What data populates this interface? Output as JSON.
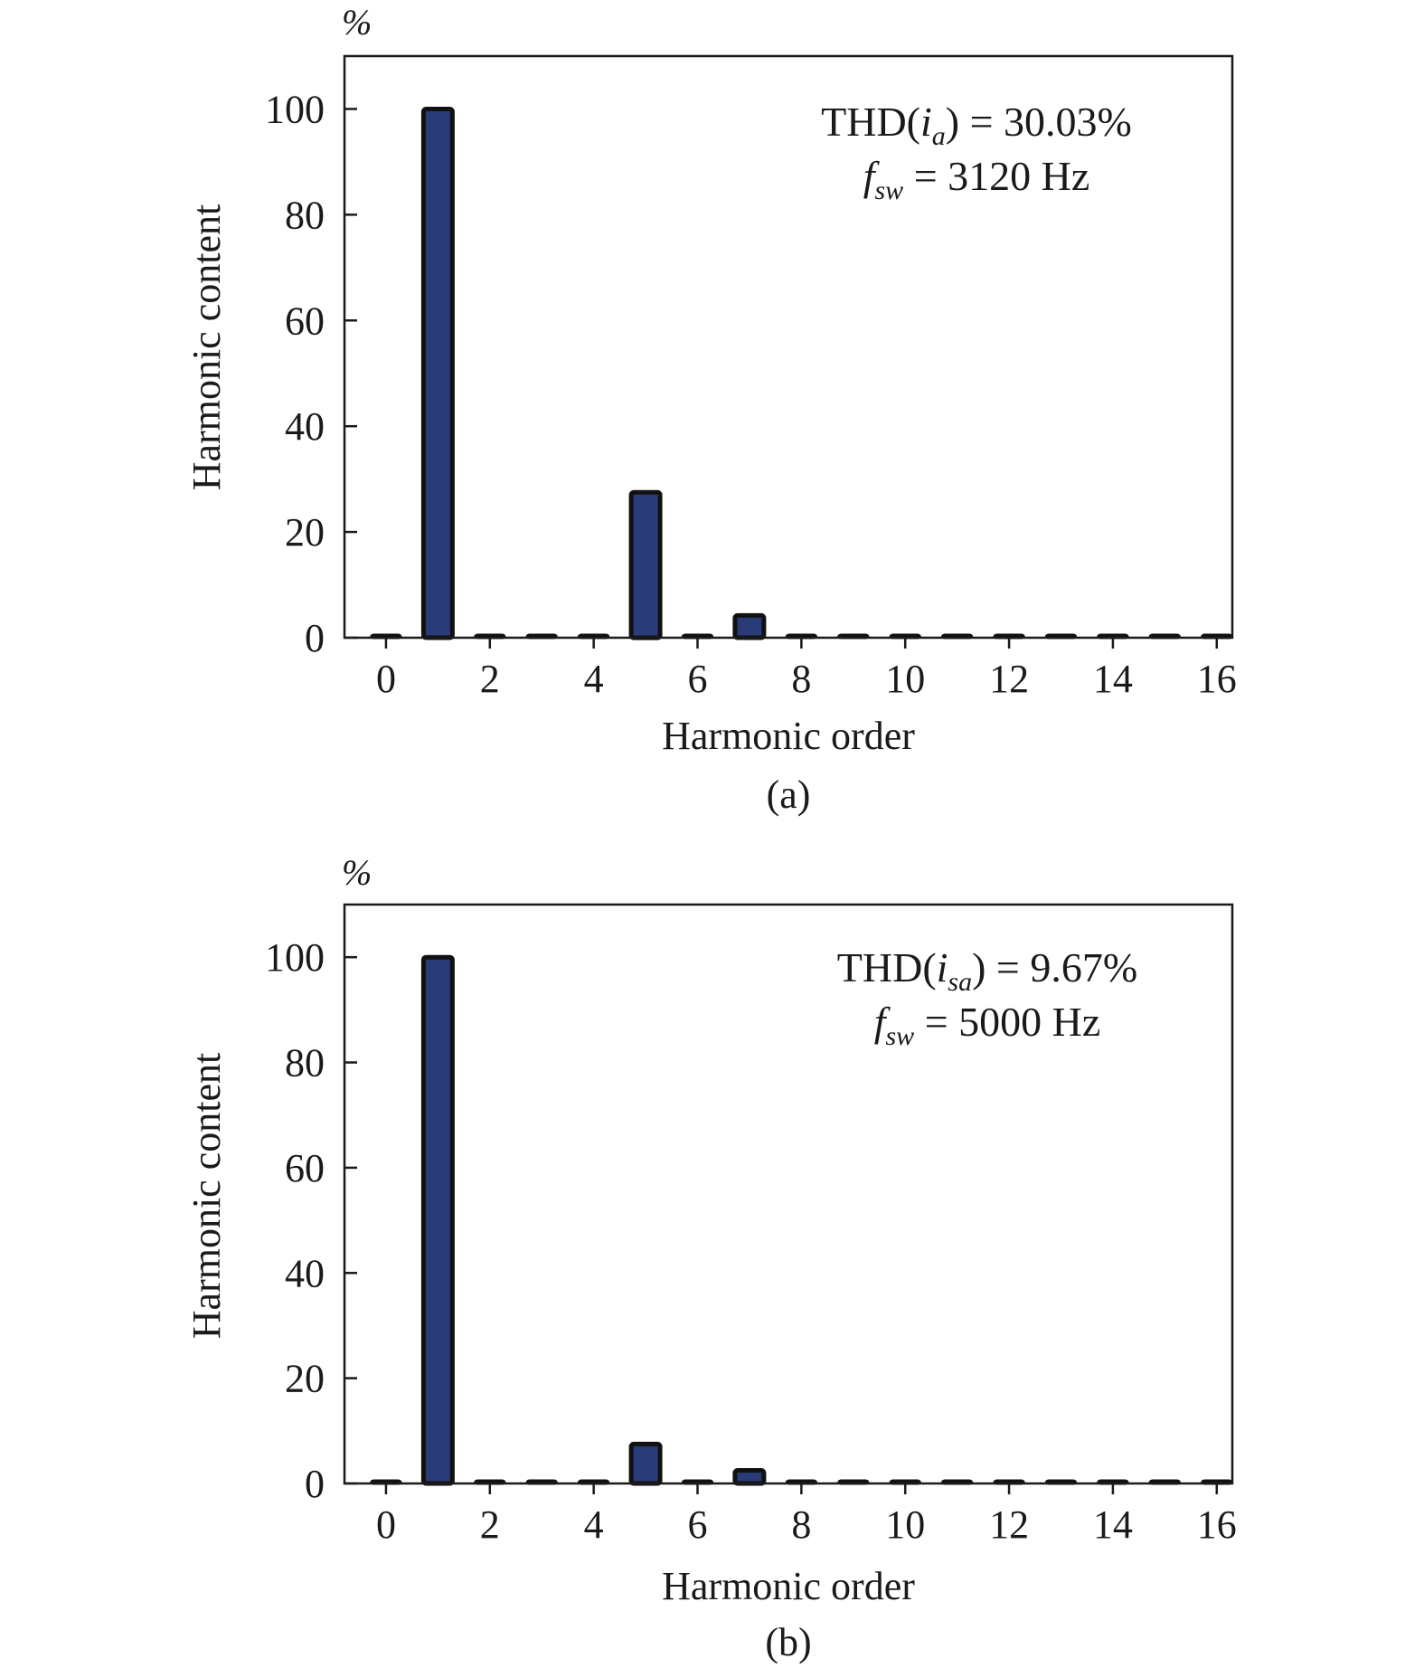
{
  "chart_data": [
    {
      "type": "bar",
      "panel_label": "(a)",
      "unit_label": "%",
      "xlabel": "Harmonic order",
      "ylabel": "Harmonic content",
      "xlim": [
        -0.8,
        16.3
      ],
      "ylim": [
        0,
        110
      ],
      "xticks": [
        0,
        2,
        4,
        6,
        8,
        10,
        12,
        14,
        16
      ],
      "yticks": [
        0,
        20,
        40,
        60,
        80,
        100
      ],
      "grid": false,
      "x": [
        0,
        1,
        2,
        3,
        4,
        5,
        6,
        7,
        8,
        9,
        10,
        11,
        12,
        13,
        14,
        15,
        16
      ],
      "values": [
        0.2,
        100,
        0.3,
        0.5,
        0.3,
        27.5,
        0.4,
        4.2,
        0.3,
        0.5,
        0.2,
        0.4,
        0.2,
        0.4,
        0.2,
        0.4,
        0.2
      ],
      "bar_color": "#2b3b78",
      "annotation": {
        "thd_prefix": "THD(",
        "thd_var": "i",
        "thd_sub": "a",
        "thd_suffix": ") = 30.03%",
        "fsw_var": "f",
        "fsw_sub": "sw",
        "fsw_suffix": " = 3120 Hz"
      }
    },
    {
      "type": "bar",
      "panel_label": "(b)",
      "unit_label": "%",
      "xlabel": "Harmonic order",
      "ylabel": "Harmonic content",
      "xlim": [
        -0.8,
        16.3
      ],
      "ylim": [
        0,
        110
      ],
      "xticks": [
        0,
        2,
        4,
        6,
        8,
        10,
        12,
        14,
        16
      ],
      "yticks": [
        0,
        20,
        40,
        60,
        80,
        100
      ],
      "grid": false,
      "x": [
        0,
        1,
        2,
        3,
        4,
        5,
        6,
        7,
        8,
        9,
        10,
        11,
        12,
        13,
        14,
        15,
        16
      ],
      "values": [
        0.2,
        100,
        0.3,
        0.5,
        0.3,
        7.5,
        0.4,
        2.5,
        0.3,
        0.5,
        0.2,
        0.4,
        0.2,
        0.4,
        0.2,
        0.4,
        0.2
      ],
      "bar_color": "#2b3b78",
      "annotation": {
        "thd_prefix": "THD(",
        "thd_var": "i",
        "thd_sub": "sa",
        "thd_suffix": ") = 9.67%",
        "fsw_var": "f",
        "fsw_sub": "sw",
        "fsw_suffix": " = 5000 Hz"
      }
    }
  ]
}
